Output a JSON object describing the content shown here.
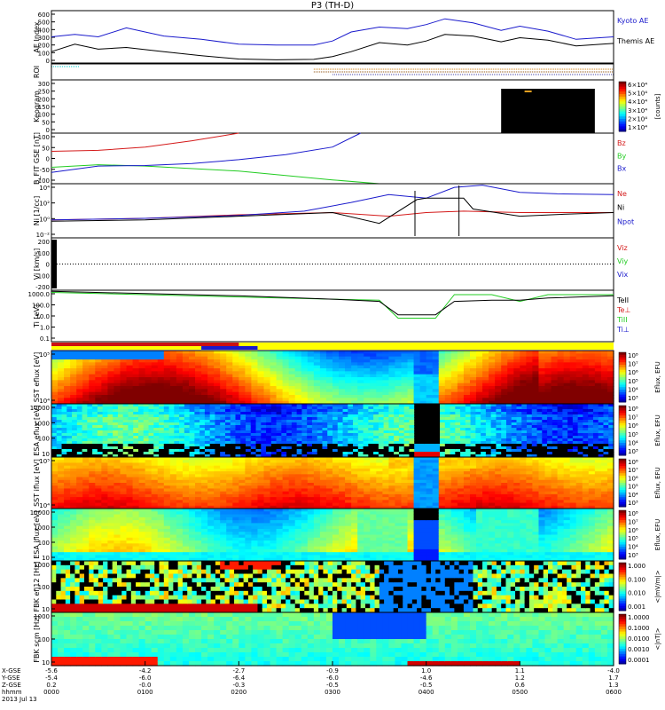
{
  "chart_data": {
    "type": "line",
    "title": "P3 (TH-D)",
    "panels": [
      {
        "id": "ae",
        "ylabel": "AE Index",
        "yticks": [
          "600",
          "500",
          "400",
          "300",
          "200",
          "100",
          "0"
        ],
        "ylim": [
          0,
          650
        ],
        "legend": [
          "Kyoto AE",
          "Themis AE"
        ],
        "series": [
          {
            "name": "Kyoto AE",
            "color": "#1a1acc",
            "x": [
              0,
              0.25,
              0.5,
              0.8,
              1.2,
              1.6,
              2.0,
              2.4,
              2.8,
              3.0,
              3.2,
              3.5,
              3.8,
              4.0,
              4.2,
              4.5,
              4.8,
              5.0,
              5.3,
              5.6,
              6.0
            ],
            "y": [
              330,
              360,
              330,
              440,
              340,
              300,
              240,
              230,
              230,
              280,
              390,
              450,
              430,
              480,
              550,
              500,
              410,
              460,
              400,
              300,
              330
            ]
          },
          {
            "name": "Themis AE",
            "color": "#000000",
            "x": [
              0,
              0.25,
              0.5,
              0.8,
              1.2,
              1.6,
              2.0,
              2.4,
              2.8,
              3.0,
              3.2,
              3.5,
              3.8,
              4.0,
              4.2,
              4.5,
              4.8,
              5.0,
              5.3,
              5.6,
              6.0
            ],
            "y": [
              150,
              240,
              180,
              200,
              150,
              100,
              60,
              50,
              55,
              90,
              150,
              260,
              230,
              280,
              360,
              340,
              270,
              320,
              290,
              220,
              250
            ]
          }
        ]
      },
      {
        "id": "roi",
        "ylabel": "ROI"
      },
      {
        "id": "keogram",
        "ylabel": "Keogram",
        "yticks": [
          "300",
          "250",
          "200",
          "150",
          "100",
          "50",
          "0"
        ],
        "ylim": [
          0,
          300
        ],
        "colorbar": {
          "ticks": [
            "6×10⁴",
            "5×10⁴",
            "4×10⁴",
            "3×10⁴",
            "2×10⁴",
            "1×10⁴"
          ],
          "label": "[counts]"
        }
      },
      {
        "id": "bfit",
        "ylabel": "B_FIT GSE [nT]",
        "yticks": [
          "100",
          "50",
          "0",
          "-50",
          "-100"
        ],
        "ylim": [
          -100,
          100
        ],
        "legend": [
          "Bz",
          "By",
          "Bx"
        ],
        "series": [
          {
            "name": "Bz",
            "color": "#d41a1a",
            "x": [
              0,
              0.5,
              1.0,
              1.5,
              2.0
            ],
            "y": [
              28,
              32,
              45,
              70,
              100
            ]
          },
          {
            "name": "By",
            "color": "#22cc22",
            "x": [
              0,
              0.5,
              1.0,
              2.0,
              3.0,
              3.5
            ],
            "y": [
              -35,
              -25,
              -30,
              -50,
              -85,
              -100
            ]
          },
          {
            "name": "Bx",
            "color": "#1a1acc",
            "x": [
              0,
              0.5,
              1.0,
              1.5,
              2.0,
              2.5,
              3.0,
              3.3
            ],
            "y": [
              -55,
              -30,
              -28,
              -20,
              -5,
              15,
              45,
              100
            ]
          }
        ]
      },
      {
        "id": "ni",
        "ylabel": "Ni [1/cc]",
        "yticks": [
          "10⁴",
          "10²",
          "10⁰",
          "10⁻²"
        ],
        "ylim": [
          -2.5,
          5
        ],
        "legend": [
          "Ne",
          "Ni",
          "Npot"
        ],
        "series": [
          {
            "name": "Ne",
            "color": "#d41a1a",
            "x": [
              0,
              1,
              2,
              3,
              3.6,
              4.0,
              4.4,
              5,
              6
            ],
            "y": [
              0,
              0.2,
              0.7,
              1.0,
              0.5,
              1.0,
              1.2,
              1.0,
              1.0
            ]
          },
          {
            "name": "Npot",
            "color": "#1a1acc",
            "x": [
              0,
              1,
              2,
              2.7,
              3.2,
              3.6,
              4.0,
              4.3,
              4.6,
              5.0,
              5.4,
              6.0
            ],
            "y": [
              0,
              0.2,
              0.6,
              1.2,
              2.4,
              3.5,
              3.0,
              4.5,
              4.8,
              3.8,
              3.6,
              3.5
            ]
          },
          {
            "name": "Ni",
            "color": "#000000",
            "x": [
              0,
              1,
              2,
              3,
              3.5,
              3.9,
              4.0,
              4.4,
              4.5,
              5.0,
              5.5,
              6.0
            ],
            "y": [
              -0.2,
              0,
              0.5,
              1.0,
              -0.5,
              2.8,
              3.0,
              3.0,
              1.5,
              0.5,
              0.8,
              1.0
            ]
          }
        ]
      },
      {
        "id": "vi",
        "ylabel": "Vi [km/s]",
        "yticks": [
          "200",
          "100",
          "0",
          "-100",
          "-200"
        ],
        "ylim": [
          -250,
          250
        ],
        "legend": [
          "Viz",
          "Viy",
          "Vix"
        ]
      },
      {
        "id": "ti",
        "ylabel": "Ti [eV]",
        "yticks": [
          "1000.0",
          "100.0",
          "10.0",
          "1.0",
          "0.1"
        ],
        "ylim": [
          -1.2,
          3.4
        ],
        "legend": [
          "TeII",
          "Te⊥",
          "TiII",
          "Ti⊥"
        ],
        "series": [
          {
            "name": "TiII",
            "color": "#22cc22",
            "x": [
              0,
              1,
              2,
              3.0,
              3.5,
              3.7,
              4.1,
              4.3,
              4.7,
              5.0,
              5.3,
              6.0
            ],
            "y": [
              3.2,
              3.0,
              2.8,
              2.6,
              2.5,
              0.9,
              0.9,
              3.0,
              3.0,
              2.4,
              3.0,
              3.0
            ]
          },
          {
            "name": "TeII",
            "color": "#000000",
            "x": [
              0,
              1,
              2,
              3.0,
              3.5,
              3.7,
              4.1,
              4.3,
              4.7,
              5.0,
              5.3,
              6.0
            ],
            "y": [
              3.3,
              3.1,
              2.9,
              2.6,
              2.4,
              1.2,
              1.2,
              2.4,
              2.5,
              2.5,
              2.7,
              2.9
            ]
          }
        ]
      },
      {
        "id": "sst_e",
        "ylabel": "SST eflux [eV]",
        "yticks": [
          "10⁵",
          "10⁴"
        ],
        "colorbar": {
          "ticks": [
            "10⁸",
            "10⁷",
            "10⁶",
            "10⁵",
            "10⁴",
            "10³"
          ],
          "label": "Eflux, EFU"
        }
      },
      {
        "id": "esa_e",
        "ylabel": "ESA eflux [eV]",
        "yticks": [
          "10000",
          "1000",
          "100",
          "10"
        ],
        "colorbar": {
          "ticks": [
            "10⁸",
            "10⁷",
            "10⁶",
            "10⁵",
            "10⁴",
            "10³"
          ],
          "label": "Eflux, EFU"
        }
      },
      {
        "id": "sst_i",
        "ylabel": "SST iflux [eV]",
        "yticks": [
          "10⁵",
          "10⁴"
        ],
        "colorbar": {
          "ticks": [
            "10⁸",
            "10⁷",
            "10⁶",
            "10⁵",
            "10⁴",
            "10³"
          ],
          "label": "Eflux, EFU"
        }
      },
      {
        "id": "esa_i",
        "ylabel": "ESA iflux [eV]",
        "yticks": [
          "10000",
          "1000",
          "100",
          "10"
        ],
        "colorbar": {
          "ticks": [
            "10⁸",
            "10⁷",
            "10⁶",
            "10⁵",
            "10⁴",
            "10³"
          ],
          "label": "Eflux, EFU"
        }
      },
      {
        "id": "fbk_e",
        "ylabel": "FBK efi12 [Hz]",
        "yticks": [
          "1000",
          "100",
          "10"
        ],
        "colorbar": {
          "ticks": [
            "1.000",
            "0.100",
            "0.010",
            "0.001"
          ],
          "label": "<|mV/m|>"
        }
      },
      {
        "id": "fbk_b",
        "ylabel": "FBK scm [Hz]",
        "yticks": [
          "1000",
          "100",
          "10"
        ],
        "colorbar": {
          "ticks": [
            "1.0000",
            "0.1000",
            "0.0100",
            "0.0010",
            "0.0001"
          ],
          "label": "<|nT|>"
        }
      }
    ],
    "xaxis": {
      "row_labels": [
        "X-GSE",
        "Y-GSE",
        "Z-GSE",
        "hhmm",
        "2013 Jul 13"
      ],
      "columns": [
        {
          "t": 0,
          "vals": [
            "-5.6",
            "-5.4",
            "0.2",
            "0000"
          ]
        },
        {
          "t": 1,
          "vals": [
            "-4.2",
            "-6.0",
            "-0.0",
            "0100"
          ]
        },
        {
          "t": 2,
          "vals": [
            "-2.7",
            "-6.4",
            "-0.3",
            "0200"
          ]
        },
        {
          "t": 3,
          "vals": [
            "-0.9",
            "-6.0",
            "-0.5",
            "0300"
          ]
        },
        {
          "t": 4,
          "vals": [
            "1.0",
            "-4.6",
            "-0.5",
            "0400"
          ]
        },
        {
          "t": 5,
          "vals": [
            "1.1",
            "1.2",
            "0.6",
            "0500"
          ]
        },
        {
          "t": 6,
          "vals": [
            "-4.0",
            "1.7",
            "1.3",
            "0600"
          ]
        }
      ],
      "xlim": [
        0,
        6
      ]
    }
  }
}
